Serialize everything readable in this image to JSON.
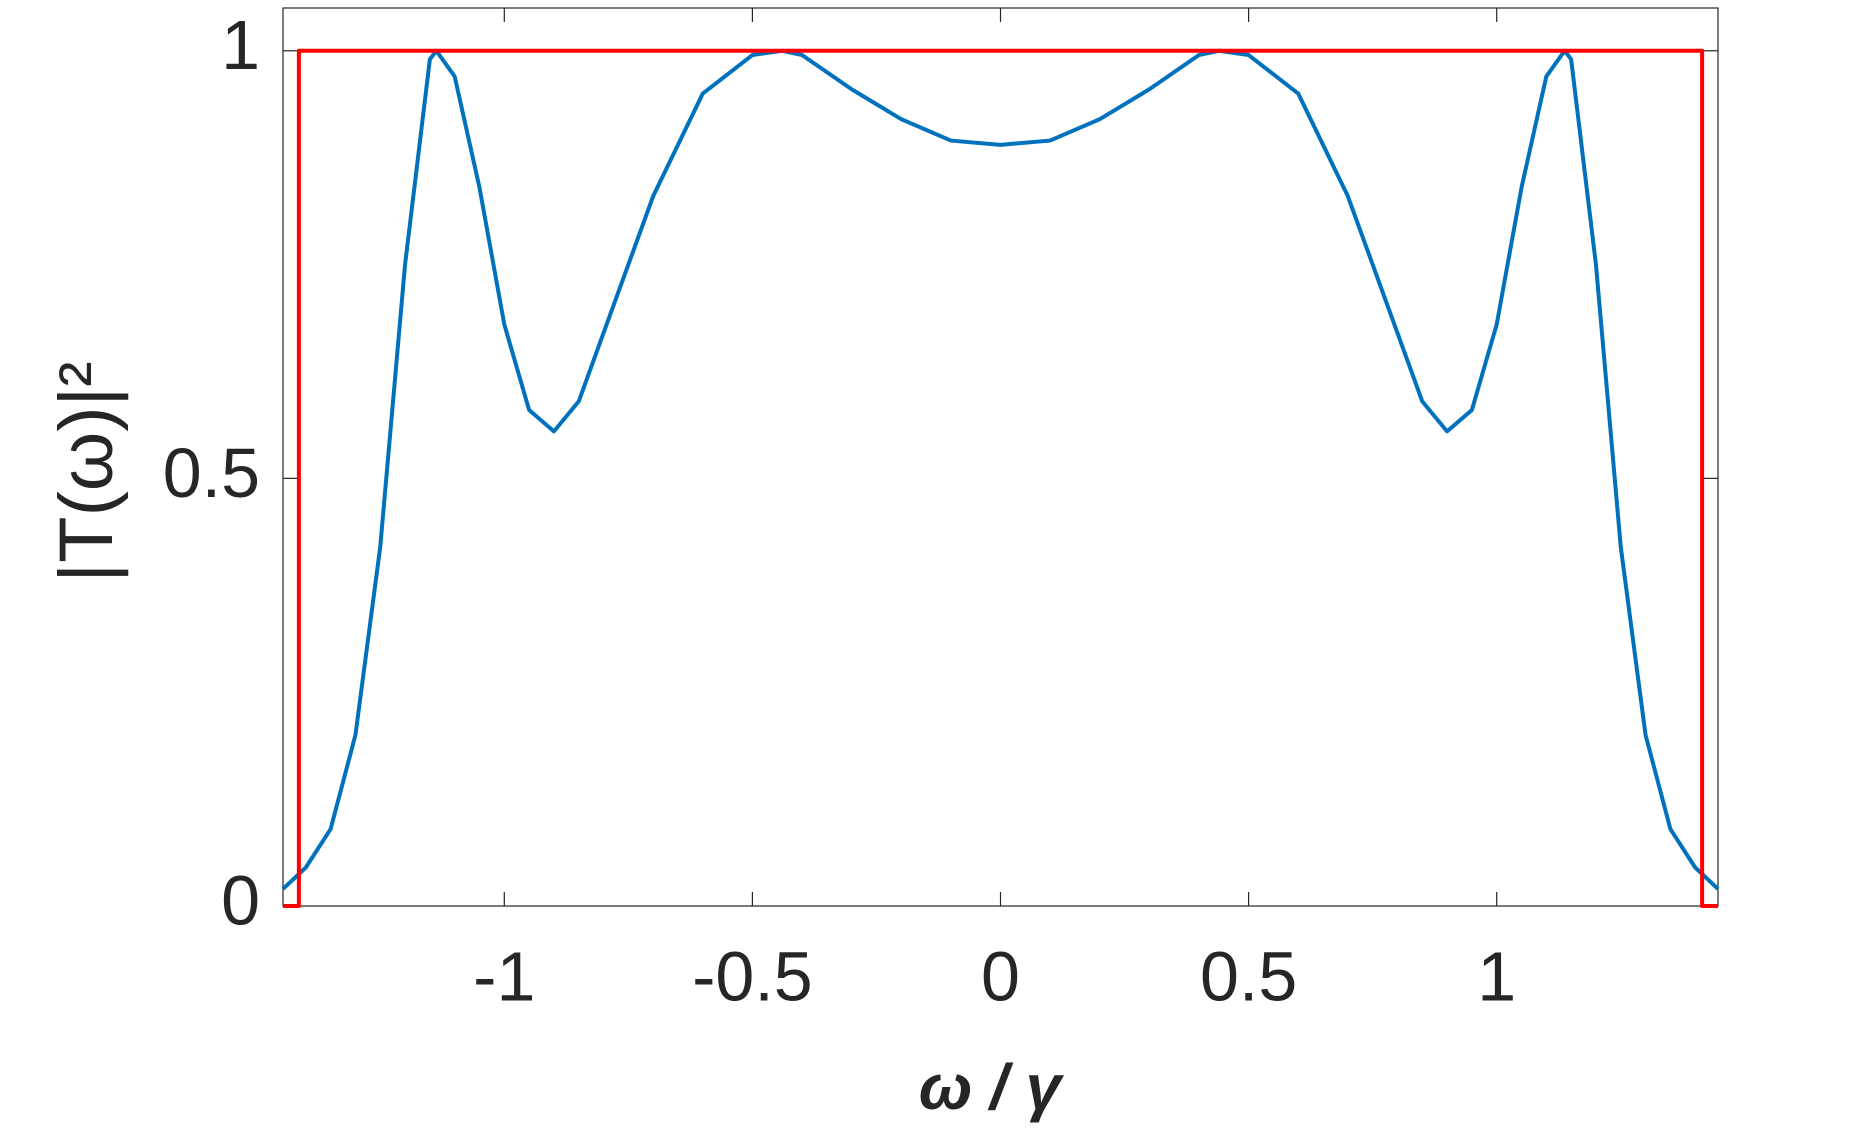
{
  "chart_data": {
    "type": "line",
    "xlabel": "ω / γ",
    "ylabel": "|T(ω)|²",
    "xlim": [
      -1.446,
      1.446
    ],
    "ylim": [
      0,
      1.05
    ],
    "xticks": [
      -1,
      -0.5,
      0,
      0.5,
      1
    ],
    "yticks": [
      0,
      0.5,
      1
    ],
    "grid": false,
    "series": [
      {
        "color": "#0072bd",
        "x": [
          -1.446,
          -1.4,
          -1.35,
          -1.3,
          -1.25,
          -1.2,
          -1.15,
          -1.137,
          -1.1,
          -1.05,
          -1,
          -0.95,
          -0.9,
          -0.85,
          -0.8,
          -0.7,
          -0.6,
          -0.5,
          -0.44,
          -0.4,
          -0.3,
          -0.2,
          -0.1,
          0,
          0.1,
          0.2,
          0.3,
          0.4,
          0.44,
          0.5,
          0.6,
          0.7,
          0.8,
          0.85,
          0.9,
          0.95,
          1,
          1.05,
          1.1,
          1.137,
          1.15,
          1.2,
          1.25,
          1.3,
          1.35,
          1.4,
          1.446
        ],
        "values": [
          0.02,
          0.045,
          0.09,
          0.2,
          0.42,
          0.75,
          0.99,
          1.0,
          0.97,
          0.84,
          0.68,
          0.58,
          0.555,
          0.59,
          0.67,
          0.83,
          0.95,
          0.995,
          1.0,
          0.995,
          0.955,
          0.92,
          0.895,
          0.89,
          0.895,
          0.92,
          0.955,
          0.995,
          1.0,
          0.995,
          0.95,
          0.83,
          0.67,
          0.59,
          0.555,
          0.58,
          0.68,
          0.84,
          0.97,
          1.0,
          0.99,
          0.75,
          0.42,
          0.2,
          0.09,
          0.045,
          0.02
        ]
      },
      {
        "color": "#ff0000",
        "x": [
          -1.446,
          -1.414,
          -1.414,
          1.414,
          1.414,
          1.446
        ],
        "values": [
          0,
          0,
          1,
          1,
          0,
          0
        ]
      }
    ]
  }
}
